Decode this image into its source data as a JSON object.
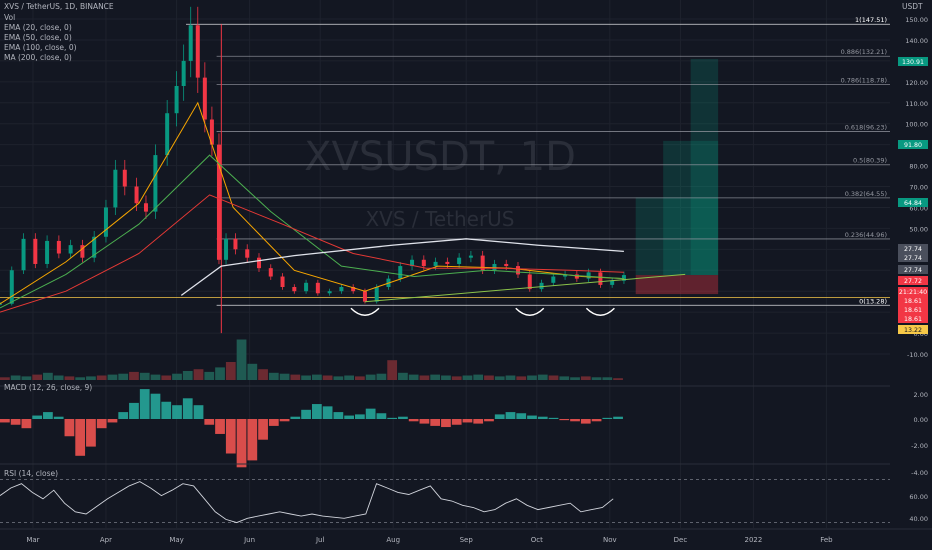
{
  "header": {
    "symbol_line": "XVS / TetherUS, 1D, BINANCE",
    "indicators": [
      "Vol",
      "EMA (20, close, 0)",
      "EMA (50, close, 0)",
      "EMA (100, close, 0)",
      "MA (200, close, 0)"
    ],
    "macd_label": "MACD (12, 26, close, 9)",
    "rsi_label": "RSI (14, close)"
  },
  "watermark": {
    "ticker": "XVSUSDT, 1D",
    "name": "XVS / TetherUS"
  },
  "price_axis": {
    "currency": "USDT",
    "ticks": [
      "150.00",
      "140.00",
      "130.00",
      "120.00",
      "110.00",
      "100.00",
      "90.00",
      "80.00",
      "70.00",
      "60.00",
      "50.00",
      "40.00",
      "30.00",
      "20.00",
      "10.00",
      "0.00",
      "-10.00"
    ]
  },
  "macd_axis": {
    "ticks": [
      "2.00",
      "0.00",
      "-2.00",
      "-4.00"
    ]
  },
  "rsi_axis": {
    "ticks": [
      "60.00",
      "40.00"
    ]
  },
  "time_axis": {
    "labels": [
      "Mar",
      "Apr",
      "May",
      "Jun",
      "Jul",
      "Aug",
      "Sep",
      "Oct",
      "Nov",
      "Dec",
      "2022",
      "Feb"
    ]
  },
  "price_badges": [
    {
      "text": "130.91",
      "color": "#089981"
    },
    {
      "text": "91.80",
      "color": "#089981"
    },
    {
      "text": "64.84",
      "color": "#089981"
    },
    {
      "text": "27.74",
      "color": "#4a4f5c"
    },
    {
      "text": "27.74",
      "color": "#4a4f5c"
    },
    {
      "text": "27.74",
      "color": "#4a4f5c"
    },
    {
      "text": "27.72",
      "color": "#f23645"
    },
    {
      "text": "21:21:40",
      "color": "#f23645"
    },
    {
      "text": "18.61",
      "color": "#f23645"
    },
    {
      "text": "18.61",
      "color": "#f23645"
    },
    {
      "text": "18.61",
      "color": "#f23645"
    },
    {
      "text": "13.22",
      "color": "#f7c948"
    }
  ],
  "chart_data": {
    "type": "line",
    "title": "XVS / TetherUS, 1D, BINANCE",
    "x_range": [
      "2021-02-15",
      "2022-02-28"
    ],
    "ylim": [
      -14,
      152
    ],
    "fibonacci": [
      {
        "level": "1",
        "price": 147.51,
        "label": "1(147.51)"
      },
      {
        "level": "0.886",
        "price": 132.21,
        "label": "0.886(132.21)"
      },
      {
        "level": "0.786",
        "price": 118.78,
        "label": "0.786(118.78)"
      },
      {
        "level": "0.618",
        "price": 96.23,
        "label": "0.618(96.23)"
      },
      {
        "level": "0.5",
        "price": 80.39,
        "label": "0.5(80.39)"
      },
      {
        "level": "0.382",
        "price": 64.55,
        "label": "0.382(64.55)"
      },
      {
        "level": "0.236",
        "price": 44.96,
        "label": "0.236(44.96)"
      },
      {
        "level": "0",
        "price": 13.28,
        "label": "0(13.28)"
      }
    ],
    "close_series": [
      [
        "2021-02-15",
        14
      ],
      [
        "2021-02-20",
        30
      ],
      [
        "2021-02-25",
        45
      ],
      [
        "2021-03-02",
        33
      ],
      [
        "2021-03-07",
        44
      ],
      [
        "2021-03-12",
        38
      ],
      [
        "2021-03-17",
        42
      ],
      [
        "2021-03-22",
        36
      ],
      [
        "2021-03-27",
        46
      ],
      [
        "2021-04-01",
        60
      ],
      [
        "2021-04-05",
        78
      ],
      [
        "2021-04-09",
        70
      ],
      [
        "2021-04-14",
        62
      ],
      [
        "2021-04-18",
        58
      ],
      [
        "2021-04-22",
        85
      ],
      [
        "2021-04-27",
        105
      ],
      [
        "2021-05-01",
        118
      ],
      [
        "2021-05-04",
        130
      ],
      [
        "2021-05-07",
        147
      ],
      [
        "2021-05-10",
        122
      ],
      [
        "2021-05-13",
        102
      ],
      [
        "2021-05-16",
        90
      ],
      [
        "2021-05-19",
        35
      ],
      [
        "2021-05-22",
        45
      ],
      [
        "2021-05-26",
        40
      ],
      [
        "2021-05-31",
        36
      ],
      [
        "2021-06-05",
        31
      ],
      [
        "2021-06-10",
        27
      ],
      [
        "2021-06-15",
        22
      ],
      [
        "2021-06-20",
        20
      ],
      [
        "2021-06-25",
        24
      ],
      [
        "2021-06-30",
        19
      ],
      [
        "2021-07-05",
        20
      ],
      [
        "2021-07-10",
        22
      ],
      [
        "2021-07-15",
        20
      ],
      [
        "2021-07-20",
        15
      ],
      [
        "2021-07-25",
        22
      ],
      [
        "2021-07-30",
        26
      ],
      [
        "2021-08-04",
        32
      ],
      [
        "2021-08-09",
        35
      ],
      [
        "2021-08-14",
        32
      ],
      [
        "2021-08-19",
        34
      ],
      [
        "2021-08-24",
        33
      ],
      [
        "2021-08-29",
        36
      ],
      [
        "2021-09-03",
        37
      ],
      [
        "2021-09-08",
        30
      ],
      [
        "2021-09-13",
        33
      ],
      [
        "2021-09-18",
        32
      ],
      [
        "2021-09-23",
        28
      ],
      [
        "2021-09-28",
        21
      ],
      [
        "2021-10-03",
        24
      ],
      [
        "2021-10-08",
        27
      ],
      [
        "2021-10-13",
        28
      ],
      [
        "2021-10-18",
        26
      ],
      [
        "2021-10-23",
        29
      ],
      [
        "2021-10-28",
        23
      ],
      [
        "2021-11-02",
        25
      ],
      [
        "2021-11-07",
        27.7
      ]
    ],
    "ema20": [
      [
        "2021-02-15",
        14
      ],
      [
        "2021-03-15",
        34
      ],
      [
        "2021-04-15",
        62
      ],
      [
        "2021-05-10",
        110
      ],
      [
        "2021-05-25",
        60
      ],
      [
        "2021-06-20",
        30
      ],
      [
        "2021-07-20",
        20
      ],
      [
        "2021-08-20",
        32
      ],
      [
        "2021-09-20",
        31
      ],
      [
        "2021-10-20",
        27
      ],
      [
        "2021-11-07",
        26
      ]
    ],
    "ema50": [
      [
        "2021-02-15",
        12
      ],
      [
        "2021-03-15",
        28
      ],
      [
        "2021-04-15",
        52
      ],
      [
        "2021-05-15",
        85
      ],
      [
        "2021-06-10",
        58
      ],
      [
        "2021-07-10",
        32
      ],
      [
        "2021-08-10",
        27
      ],
      [
        "2021-09-10",
        30
      ],
      [
        "2021-10-10",
        28
      ],
      [
        "2021-11-07",
        26
      ]
    ],
    "ema100": [
      [
        "2021-02-15",
        10
      ],
      [
        "2021-03-15",
        20
      ],
      [
        "2021-04-15",
        38
      ],
      [
        "2021-05-15",
        66
      ],
      [
        "2021-06-15",
        52
      ],
      [
        "2021-07-15",
        38
      ],
      [
        "2021-08-15",
        31
      ],
      [
        "2021-09-15",
        31
      ],
      [
        "2021-10-15",
        30
      ],
      [
        "2021-11-07",
        29
      ]
    ],
    "ma200": [
      [
        "2021-05-03",
        18
      ],
      [
        "2021-05-20",
        32
      ],
      [
        "2021-06-20",
        37
      ],
      [
        "2021-08-01",
        42
      ],
      [
        "2021-09-01",
        45
      ],
      [
        "2021-10-01",
        42
      ],
      [
        "2021-11-07",
        39
      ]
    ],
    "trendline": [
      [
        "2021-07-20",
        15
      ],
      [
        "2021-12-03",
        28
      ]
    ],
    "volume": [
      3,
      5,
      4,
      6,
      8,
      5,
      4,
      3,
      4,
      5,
      6,
      7,
      9,
      8,
      6,
      5,
      7,
      10,
      12,
      9,
      14,
      20,
      45,
      18,
      12,
      8,
      7,
      6,
      5,
      6,
      5,
      4,
      5,
      4,
      6,
      7,
      22,
      8,
      6,
      5,
      6,
      5,
      4,
      5,
      6,
      5,
      4,
      5,
      4,
      5,
      6,
      5,
      4,
      3,
      4,
      3,
      3,
      2
    ],
    "macd_hist": [
      -0.3,
      -0.5,
      -0.8,
      0.3,
      0.6,
      0.2,
      -1.5,
      -3.2,
      -2.4,
      -0.8,
      -0.3,
      0.6,
      1.4,
      2.6,
      2.2,
      1.5,
      1.2,
      1.8,
      1.2,
      -0.5,
      -1.3,
      -3.0,
      -4.2,
      -3.6,
      -1.8,
      -0.6,
      -0.2,
      0.2,
      0.8,
      1.3,
      1.1,
      0.6,
      0.3,
      0.4,
      0.9,
      0.5,
      0.1,
      0.2,
      -0.2,
      -0.4,
      -0.6,
      -0.7,
      -0.5,
      -0.3,
      -0.4,
      -0.2,
      0.4,
      0.6,
      0.5,
      0.3,
      0.2,
      0.1,
      -0.1,
      -0.2,
      -0.4,
      -0.2,
      0.1,
      0.2
    ],
    "rsi": [
      55,
      62,
      66,
      58,
      52,
      60,
      48,
      40,
      38,
      45,
      52,
      58,
      64,
      68,
      62,
      55,
      60,
      66,
      64,
      52,
      40,
      33,
      30,
      34,
      36,
      38,
      40,
      38,
      36,
      38,
      36,
      35,
      34,
      36,
      38,
      66,
      62,
      58,
      56,
      60,
      64,
      52,
      50,
      46,
      44,
      40,
      42,
      48,
      52,
      46,
      42,
      44,
      46,
      48,
      40,
      42,
      44,
      52
    ],
    "rsi_levels": [
      70,
      30
    ],
    "projection_box": {
      "x0": "2021-11-12",
      "x1": "2021-12-17",
      "entry": 27.72,
      "target": 130.91,
      "stop": 18.61,
      "steps": [
        64.84,
        91.8,
        130.91
      ]
    }
  }
}
